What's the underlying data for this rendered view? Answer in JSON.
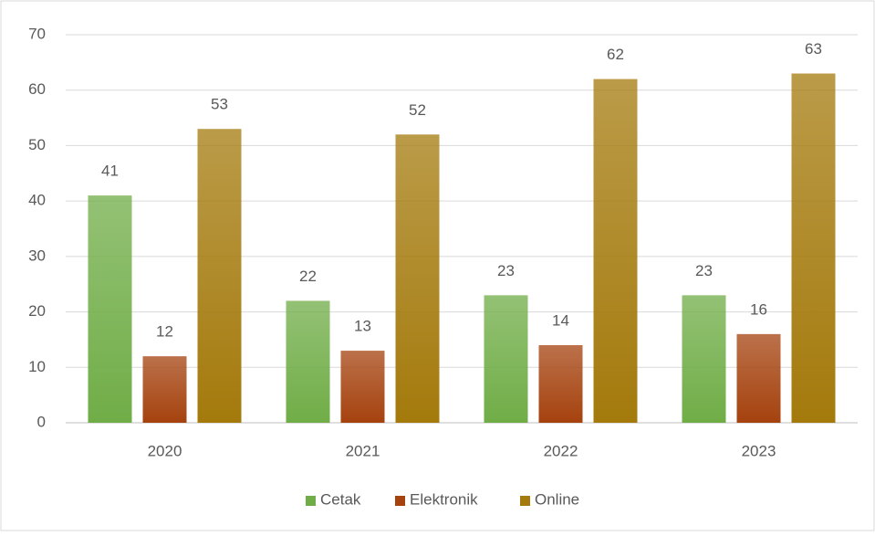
{
  "chart_data": {
    "type": "bar",
    "categories": [
      "2020",
      "2021",
      "2022",
      "2023"
    ],
    "series": [
      {
        "name": "Cetak",
        "color": "#70ad47",
        "values": [
          41,
          22,
          23,
          23
        ]
      },
      {
        "name": "Elektronik",
        "color": "#a5420e",
        "values": [
          12,
          13,
          14,
          16
        ]
      },
      {
        "name": "Online",
        "color": "#a47a0c",
        "values": [
          53,
          52,
          62,
          63
        ]
      }
    ],
    "ylim": [
      0,
      70
    ],
    "yticks": [
      0,
      10,
      20,
      30,
      40,
      50,
      60,
      70
    ],
    "grid": true,
    "legend": "bottom"
  }
}
